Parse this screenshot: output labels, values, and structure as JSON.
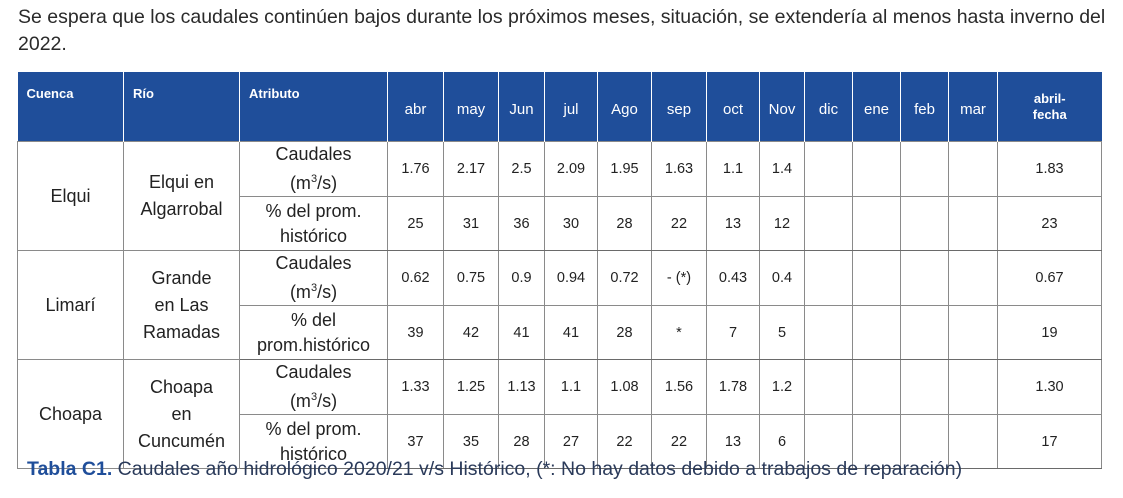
{
  "intro_text": "Se espera que los caudales continúen bajos durante los próximos meses, situación, se extendería al menos hasta inverno del 2022.",
  "headers": {
    "cuenca": "Cuenca",
    "rio": "Río",
    "atributo": "Atributo",
    "months": [
      "abr",
      "may",
      "Jun",
      "jul",
      "Ago",
      "sep",
      "oct",
      "Nov",
      "dic",
      "ene",
      "feb",
      "mar"
    ],
    "abril_fecha_1": "abril-",
    "abril_fecha_2": "fecha"
  },
  "rows": [
    {
      "cuenca": "Elqui",
      "rio": [
        "Elqui en",
        "Algarrobal"
      ],
      "attr_caudal": {
        "l1": "Caudales",
        "l2": "(m",
        "sup": "3",
        "l3": "/s)"
      },
      "attr_pct": [
        "% del prom.",
        "histórico"
      ],
      "caudal_values": [
        "1.76",
        "2.17",
        "2.5",
        "2.09",
        "1.95",
        "1.63",
        "1.1",
        "1.4",
        "",
        "",
        "",
        ""
      ],
      "caudal_abril": "1.83",
      "pct_values": [
        "25",
        "31",
        "36",
        "30",
        "28",
        "22",
        "13",
        "12",
        "",
        "",
        "",
        ""
      ],
      "pct_abril": "23"
    },
    {
      "cuenca": "Limarí",
      "rio": [
        "Grande",
        "en Las",
        "Ramadas"
      ],
      "attr_caudal": {
        "l1": "Caudales",
        "l2": "(m",
        "sup": "3",
        "l3": "/s)"
      },
      "attr_pct": [
        "% del",
        "prom.histórico"
      ],
      "caudal_values": [
        "0.62",
        "0.75",
        "0.9",
        "0.94",
        "0.72",
        "- (*)",
        "0.43",
        "0.4",
        "",
        "",
        "",
        ""
      ],
      "caudal_abril": "0.67",
      "pct_values": [
        "39",
        "42",
        "41",
        "41",
        "28",
        "*",
        "7",
        "5",
        "",
        "",
        "",
        ""
      ],
      "pct_abril": "19"
    },
    {
      "cuenca": "Choapa",
      "rio": [
        "Choapa",
        "en",
        "Cuncumén"
      ],
      "attr_caudal": {
        "l1": "Caudales",
        "l2": "(m",
        "sup": "3",
        "l3": "/s)"
      },
      "attr_pct": [
        "% del prom.",
        "histórico"
      ],
      "caudal_values": [
        "1.33",
        "1.25",
        "1.13",
        "1.1",
        "1.08",
        "1.56",
        "1.78",
        "1.2",
        "",
        "",
        "",
        ""
      ],
      "caudal_abril": "1.30",
      "pct_values": [
        "37",
        "35",
        "28",
        "27",
        "22",
        "22",
        "13",
        "6",
        "",
        "",
        "",
        ""
      ],
      "pct_abril": "17"
    }
  ],
  "caption": {
    "label": "Tabla C1.",
    "text": " Caudales año hidrológico 2020/21 v/s Histórico, (*: No hay datos debido a trabajos de reparación)"
  }
}
